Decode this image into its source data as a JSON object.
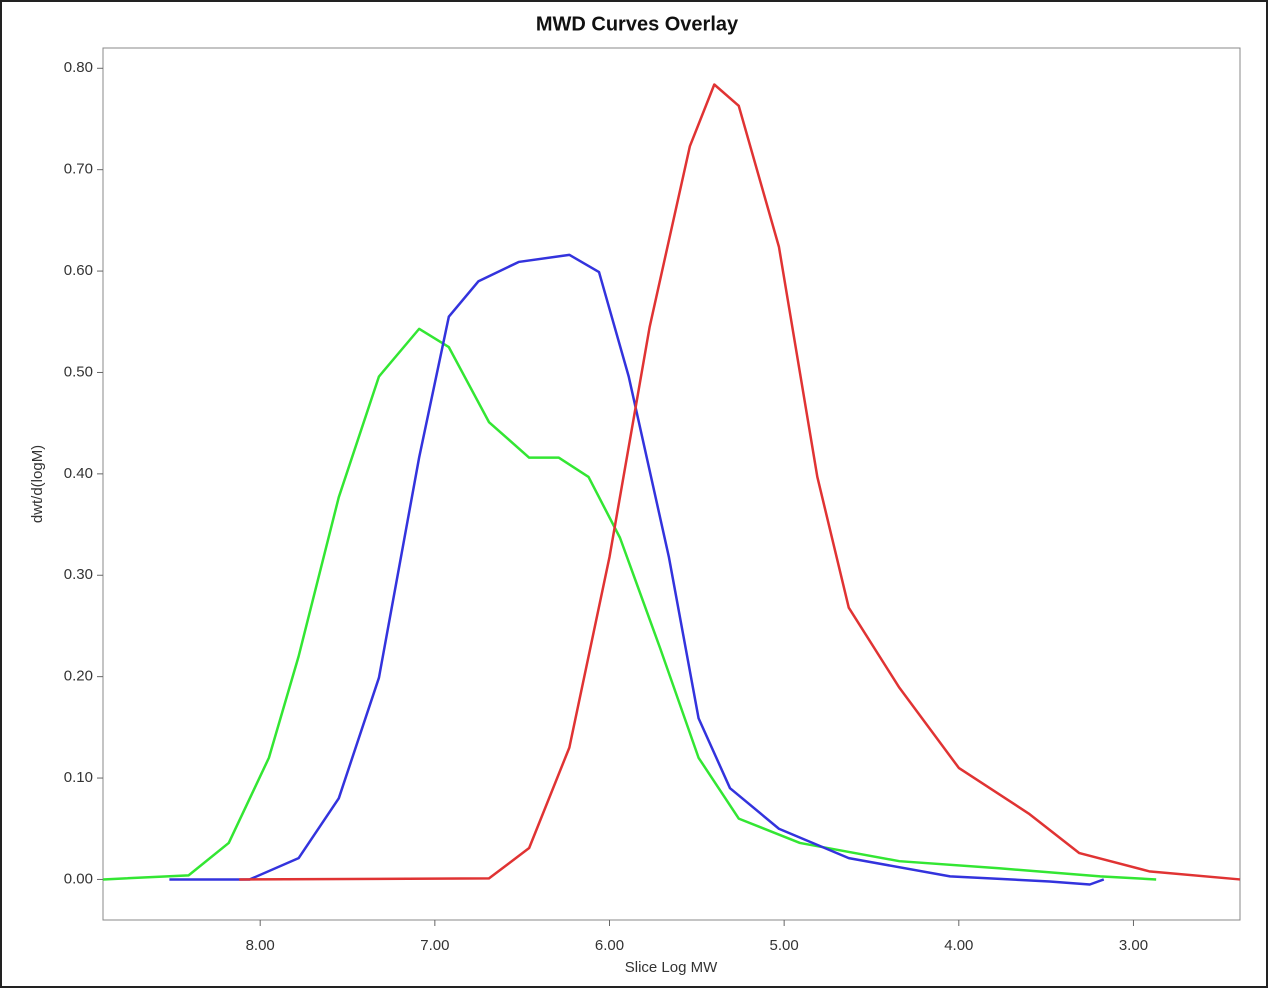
{
  "chart_data": {
    "type": "line",
    "title": "MWD Curves Overlay",
    "x_label": "Slice Log MW",
    "y_label": "dwt/d(logM)",
    "xlim": [
      8.9,
      2.39
    ],
    "ylim": [
      -0.04,
      0.82
    ],
    "xticks": [
      {
        "value": 8,
        "label": "8.00"
      },
      {
        "value": 7,
        "label": "7.00"
      },
      {
        "value": 6,
        "label": "6.00"
      },
      {
        "value": 5,
        "label": "5.00"
      },
      {
        "value": 4,
        "label": "4.00"
      },
      {
        "value": 3,
        "label": "3.00"
      }
    ],
    "yticks": [
      {
        "value": 0,
        "label": "0.00"
      },
      {
        "value": 0.1,
        "label": "0.10"
      },
      {
        "value": 0.2,
        "label": "0.20"
      },
      {
        "value": 0.3,
        "label": "0.30"
      },
      {
        "value": 0.4,
        "label": "0.40"
      },
      {
        "value": 0.5,
        "label": "0.50"
      },
      {
        "value": 0.6,
        "label": "0.60"
      },
      {
        "value": 0.7,
        "label": "0.70"
      },
      {
        "value": 0.8,
        "label": "0.80"
      }
    ],
    "series": [
      {
        "color": "#33e633",
        "x": [
          8.9,
          8.41,
          8.18,
          7.95,
          7.78,
          7.55,
          7.32,
          7.09,
          6.92,
          6.69,
          6.46,
          6.29,
          6.12,
          5.94,
          5.71,
          5.49,
          5.26,
          4.91,
          4.34,
          3.77,
          3.19,
          2.87
        ],
        "values": [
          0,
          0.004,
          0.036,
          0.12,
          0.22,
          0.377,
          0.496,
          0.543,
          0.525,
          0.451,
          0.416,
          0.416,
          0.397,
          0.337,
          0.228,
          0.12,
          0.06,
          0.036,
          0.018,
          0.011,
          0.003,
          0
        ]
      },
      {
        "color": "#3333dd",
        "x": [
          8.52,
          8.06,
          7.78,
          7.55,
          7.32,
          7.09,
          6.92,
          6.75,
          6.52,
          6.23,
          6.06,
          5.89,
          5.66,
          5.49,
          5.31,
          5.03,
          4.63,
          4.05,
          3.48,
          3.25,
          3.17
        ],
        "values": [
          0,
          0,
          0.021,
          0.08,
          0.199,
          0.416,
          0.555,
          0.59,
          0.609,
          0.616,
          0.599,
          0.496,
          0.318,
          0.159,
          0.09,
          0.05,
          0.021,
          0.003,
          -0.002,
          -0.005,
          0
        ]
      },
      {
        "color": "#e03333",
        "x": [
          8.12,
          6.69,
          6.46,
          6.23,
          6.0,
          5.77,
          5.54,
          5.4,
          5.26,
          5.03,
          4.81,
          4.63,
          4.34,
          4.0,
          3.6,
          3.31,
          2.91,
          2.39
        ],
        "values": [
          0,
          0.001,
          0.031,
          0.13,
          0.318,
          0.545,
          0.723,
          0.784,
          0.763,
          0.624,
          0.397,
          0.268,
          0.189,
          0.11,
          0.065,
          0.026,
          0.008,
          0
        ]
      }
    ]
  }
}
